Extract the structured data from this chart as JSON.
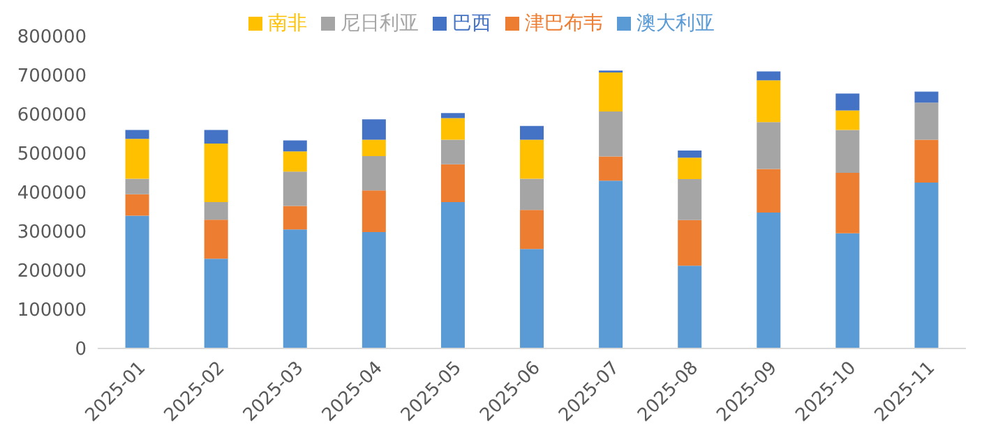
{
  "chart_data": {
    "type": "bar",
    "stacked": true,
    "categories": [
      "2025-01",
      "2025-02",
      "2025-03",
      "2025-04",
      "2025-05",
      "2025-06",
      "2025-07",
      "2025-08",
      "2025-09",
      "2025-10",
      "2025-11"
    ],
    "series": [
      {
        "name": "澳大利亚",
        "color": "#5b9bd5",
        "values": [
          340000,
          230000,
          305000,
          298000,
          375000,
          255000,
          430000,
          212000,
          348000,
          295000,
          425000
        ]
      },
      {
        "name": "津巴布韦",
        "color": "#ed7d31",
        "values": [
          55000,
          100000,
          60000,
          107000,
          97000,
          100000,
          62000,
          117000,
          112000,
          155000,
          110000
        ]
      },
      {
        "name": "尼日利亚",
        "color": "#a5a5a5",
        "values": [
          40000,
          45000,
          88000,
          88000,
          63000,
          80000,
          115000,
          105000,
          120000,
          110000,
          95000
        ]
      },
      {
        "name": "南非",
        "color": "#ffc000",
        "values": [
          102000,
          150000,
          52000,
          42000,
          55000,
          100000,
          100000,
          55000,
          107000,
          50000,
          0
        ]
      },
      {
        "name": "巴西",
        "color": "#4472c4",
        "values": [
          23000,
          35000,
          28000,
          52000,
          13000,
          35000,
          5000,
          18000,
          23000,
          43000,
          28000
        ]
      }
    ],
    "ylim": [
      0,
      800000
    ],
    "yticks": [
      0,
      100000,
      200000,
      300000,
      400000,
      500000,
      600000,
      700000,
      800000
    ],
    "grid": false,
    "legend": "top"
  }
}
